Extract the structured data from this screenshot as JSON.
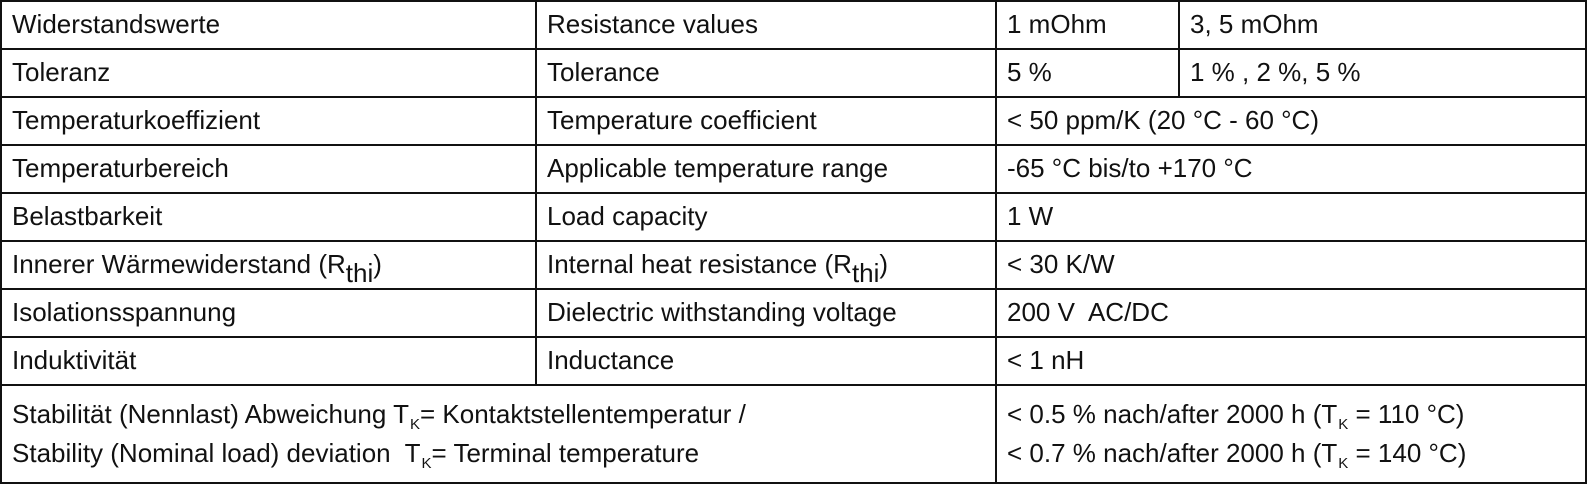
{
  "rows": [
    {
      "de": "Widerstandswerte",
      "en": "Resistance values",
      "value_a": "1 mOhm",
      "value_b": "3, 5 mOhm"
    },
    {
      "de": "Toleranz",
      "en": "Tolerance",
      "value_a": "5 %",
      "value_b": "1 % , 2 %, 5 %"
    },
    {
      "de": "Temperaturkoeffizient",
      "en": "Temperature coefficient",
      "value": "< 50 ppm/K (20 °C - 60 °C)"
    },
    {
      "de": "Temperaturbereich",
      "en": "Applicable temperature range",
      "value": "-65 °C bis/to +170 °C"
    },
    {
      "de": "Belastbarkeit",
      "en": "Load capacity",
      "value": "1 W"
    },
    {
      "de_prefix": "Innerer Wärmewiderstand (R",
      "de_sub": "thi",
      "de_suffix": ")",
      "en_prefix": "Internal heat resistance (R",
      "en_sub": "thi",
      "en_suffix": ")",
      "value": "< 30 K/W"
    },
    {
      "de": "Isolationsspannung",
      "en": "Dielectric withstanding voltage",
      "value": "200 V  AC/DC"
    },
    {
      "de": "Induktivität",
      "en": "Inductance",
      "value": "< 1 nH"
    }
  ],
  "stability": {
    "line1_prefix": "Stabilität (Nennlast) Abweichung T",
    "line1_sub": "K",
    "line1_suffix": "= Kontaktstellentemperatur /",
    "line2_prefix": "Stability (Nominal load) deviation  T",
    "line2_sub": "K",
    "line2_suffix": "= Terminal temperature",
    "value1_prefix": "< 0.5 % nach/after 2000 h (T",
    "value1_sub": "K",
    "value1_suffix": " = 110 °C)",
    "value2_prefix": "< 0.7 % nach/after 2000 h (T",
    "value2_sub": "K",
    "value2_suffix": " = 140 °C)"
  }
}
